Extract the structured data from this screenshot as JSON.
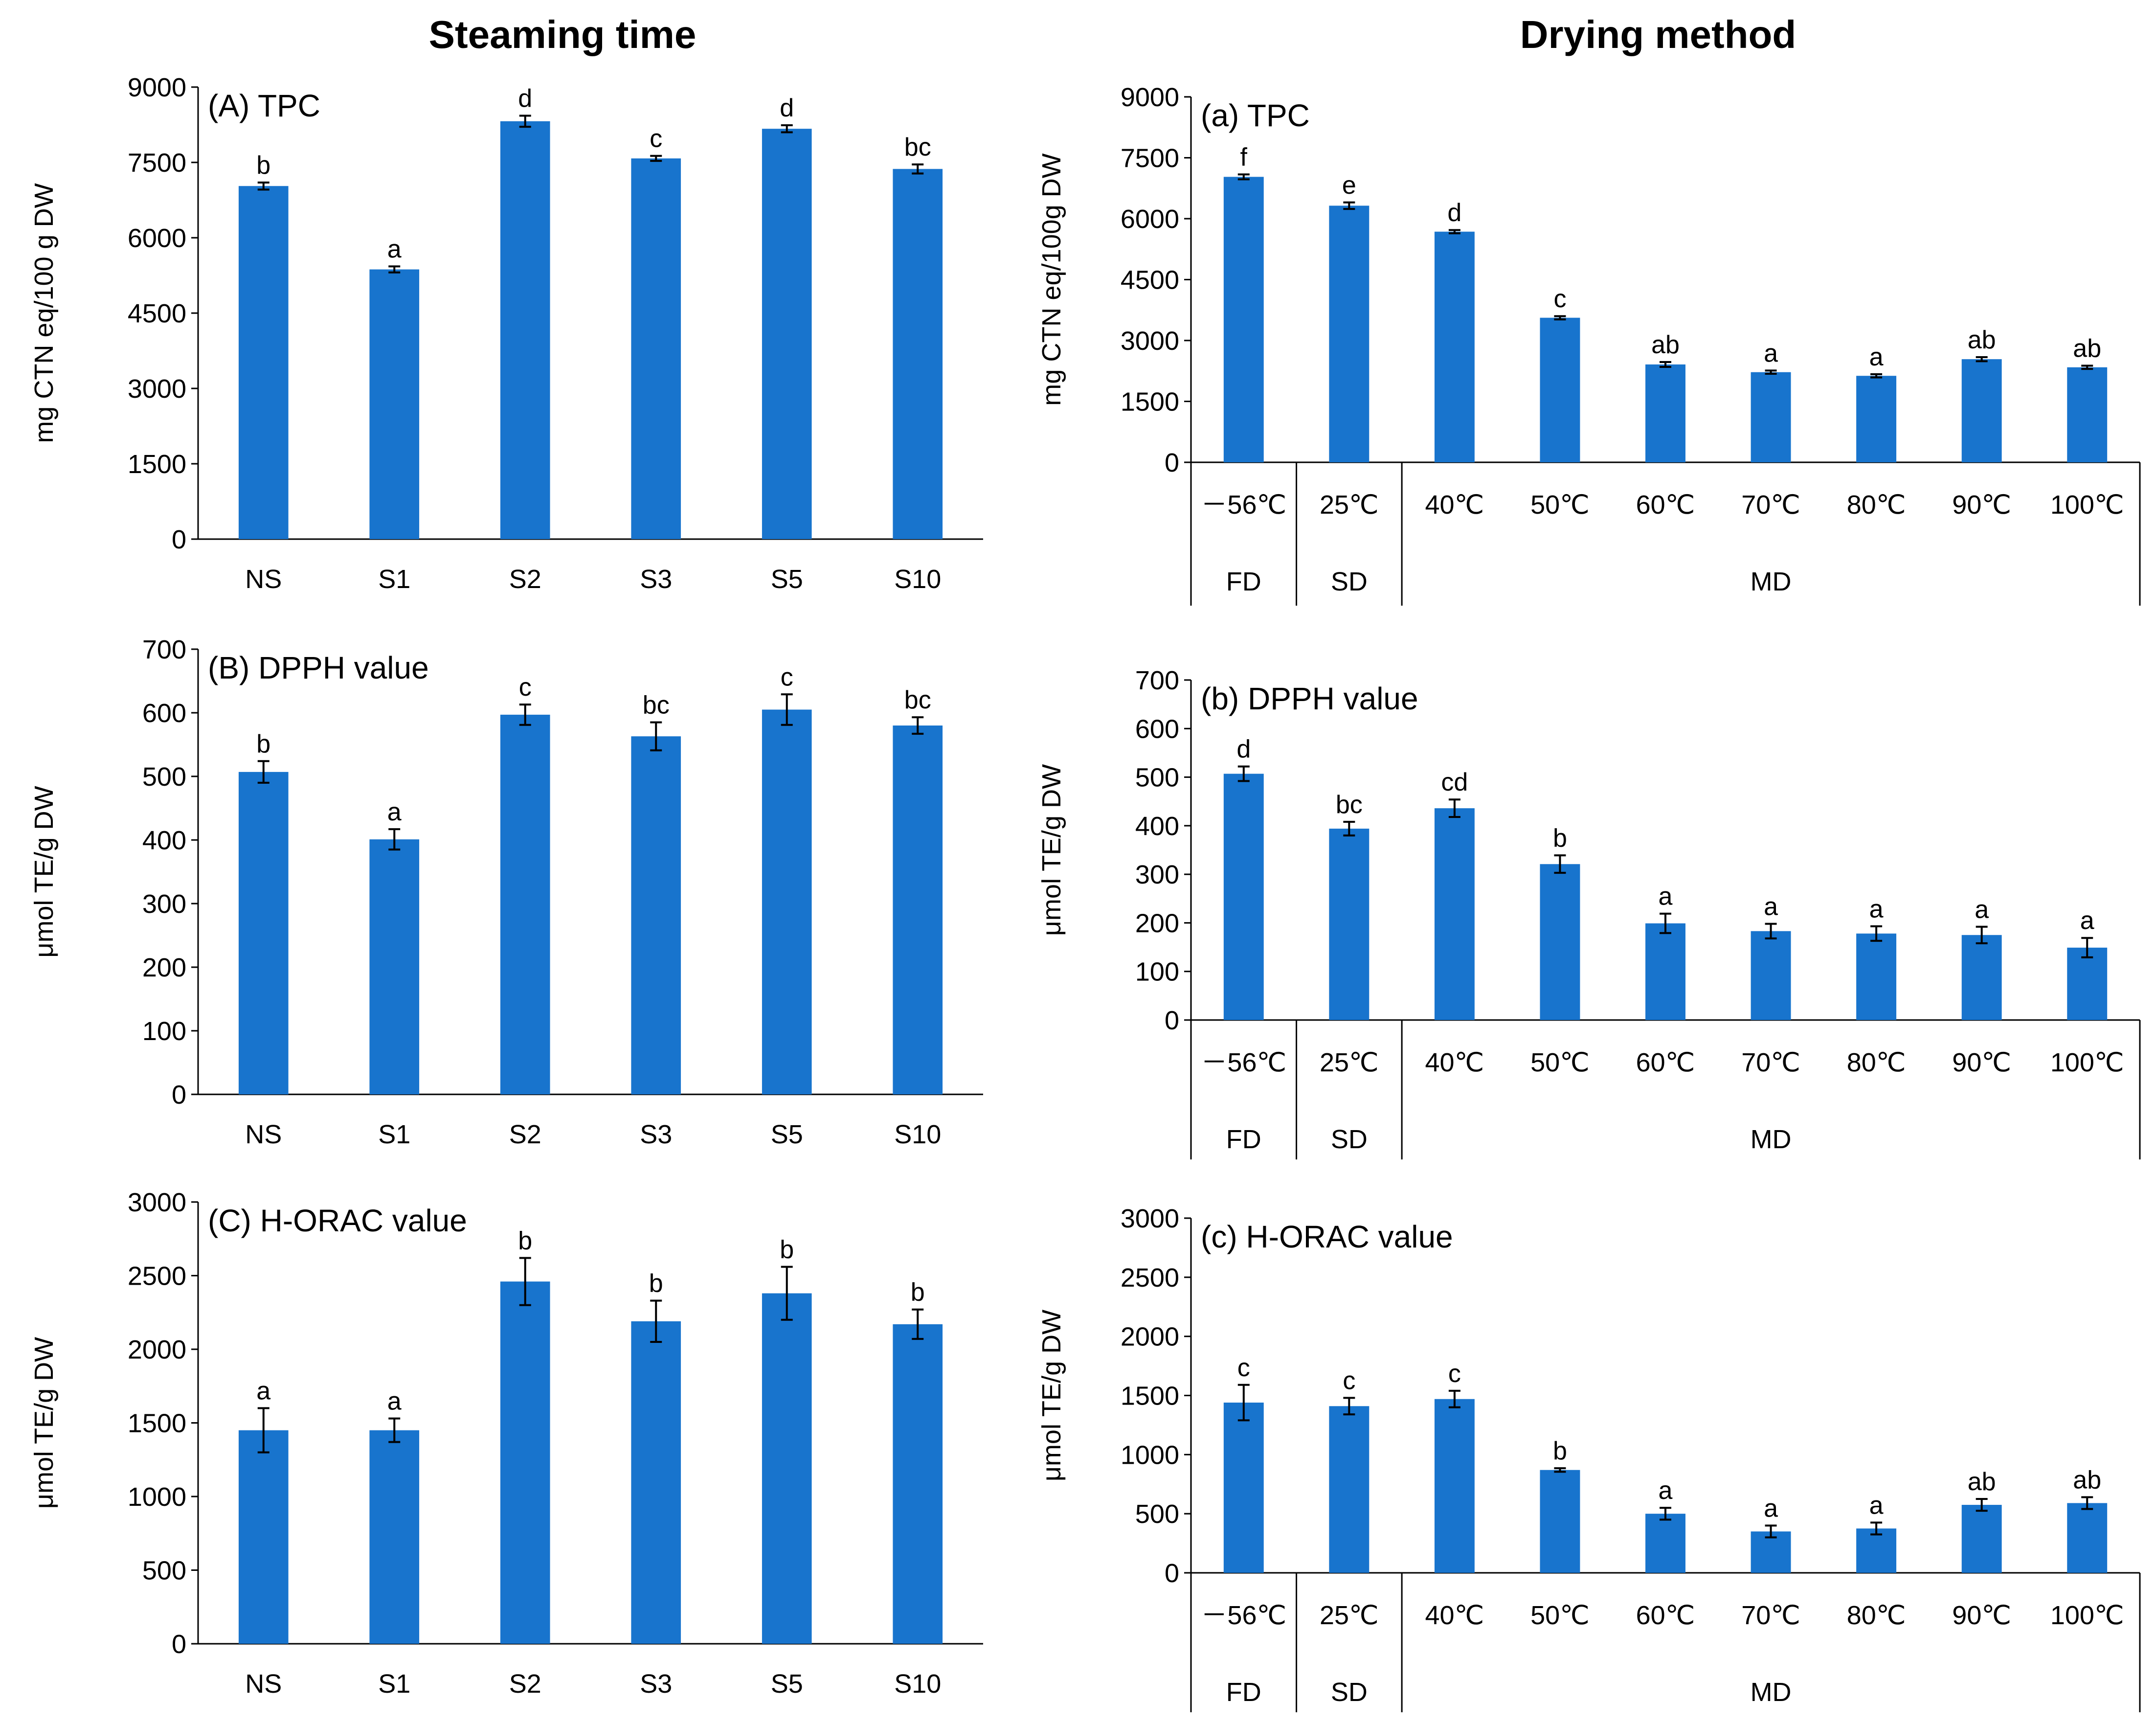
{
  "figure": {
    "left_heading": "Steaming time",
    "right_heading": "Drying method"
  },
  "colors": {
    "bar": "#1874CD",
    "axis": "#000000"
  },
  "chart_data": [
    {
      "id": "A",
      "type": "bar",
      "title": "(A) TPC",
      "ylabel": "mg CTN eq/100 g DW",
      "ylim": [
        0,
        9000
      ],
      "yticks": [
        0,
        1500,
        3000,
        4500,
        6000,
        7500,
        9000
      ],
      "categories": [
        "NS",
        "S1",
        "S2",
        "S3",
        "S5",
        "S10"
      ],
      "values": [
        7030,
        5370,
        8320,
        7580,
        8170,
        7370
      ],
      "errors": [
        70,
        60,
        110,
        50,
        70,
        90
      ],
      "letters": [
        "b",
        "a",
        "d",
        "c",
        "d",
        "bc"
      ]
    },
    {
      "id": "B",
      "type": "bar",
      "title": "(B) DPPH value",
      "ylabel": "μmol TE/g DW",
      "ylim": [
        0,
        700
      ],
      "yticks": [
        0,
        100,
        200,
        300,
        400,
        500,
        600,
        700
      ],
      "categories": [
        "NS",
        "S1",
        "S2",
        "S3",
        "S5",
        "S10"
      ],
      "values": [
        507,
        401,
        597,
        563,
        605,
        580
      ],
      "errors": [
        17,
        16,
        16,
        22,
        24,
        13
      ],
      "letters": [
        "b",
        "a",
        "c",
        "bc",
        "c",
        "bc"
      ]
    },
    {
      "id": "C",
      "type": "bar",
      "title": "(C) H-ORAC value",
      "ylabel": "μmol TE/g DW",
      "ylim": [
        0,
        3000
      ],
      "yticks": [
        0,
        500,
        1000,
        1500,
        2000,
        2500,
        3000
      ],
      "categories": [
        "NS",
        "S1",
        "S2",
        "S3",
        "S5",
        "S10"
      ],
      "values": [
        1450,
        1450,
        2460,
        2190,
        2380,
        2170
      ],
      "errors": [
        150,
        80,
        160,
        140,
        180,
        100
      ],
      "letters": [
        "a",
        "a",
        "b",
        "b",
        "b",
        "b"
      ]
    },
    {
      "id": "a",
      "type": "bar",
      "title": "(a) TPC",
      "ylabel": "mg CTN eq/100g DW",
      "ylim": [
        0,
        9000
      ],
      "yticks": [
        0,
        1500,
        3000,
        4500,
        6000,
        7500,
        9000
      ],
      "categories": [
        "－56℃",
        "25℃",
        "40℃",
        "50℃",
        "60℃",
        "70℃",
        "80℃",
        "90℃",
        "100℃"
      ],
      "groups": [
        {
          "label": "FD",
          "count": 1
        },
        {
          "label": "SD",
          "count": 1
        },
        {
          "label": "MD",
          "count": 7
        }
      ],
      "values": [
        7030,
        6320,
        5680,
        3560,
        2410,
        2220,
        2130,
        2540,
        2340
      ],
      "errors": [
        60,
        80,
        40,
        40,
        60,
        40,
        40,
        50,
        40
      ],
      "letters": [
        "f",
        "e",
        "d",
        "c",
        "ab",
        "a",
        "a",
        "ab",
        "ab"
      ]
    },
    {
      "id": "b",
      "type": "bar",
      "title": "(b) DPPH value",
      "ylabel": "μmol TE/g DW",
      "ylim": [
        0,
        700
      ],
      "yticks": [
        0,
        100,
        200,
        300,
        400,
        500,
        600,
        700
      ],
      "categories": [
        "－56℃",
        "25℃",
        "40℃",
        "50℃",
        "60℃",
        "70℃",
        "80℃",
        "90℃",
        "100℃"
      ],
      "groups": [
        {
          "label": "FD",
          "count": 1
        },
        {
          "label": "SD",
          "count": 1
        },
        {
          "label": "MD",
          "count": 7
        }
      ],
      "values": [
        507,
        394,
        436,
        321,
        199,
        183,
        178,
        175,
        149
      ],
      "errors": [
        15,
        14,
        18,
        18,
        20,
        15,
        15,
        17,
        20
      ],
      "letters": [
        "d",
        "bc",
        "cd",
        "b",
        "a",
        "a",
        "a",
        "a",
        "a"
      ]
    },
    {
      "id": "c",
      "type": "bar",
      "title": "(c) H-ORAC value",
      "ylabel": "μmol TE/g DW",
      "ylim": [
        0,
        3000
      ],
      "yticks": [
        0,
        500,
        1000,
        1500,
        2000,
        2500,
        3000
      ],
      "categories": [
        "－56℃",
        "25℃",
        "40℃",
        "50℃",
        "60℃",
        "70℃",
        "80℃",
        "90℃",
        "100℃"
      ],
      "groups": [
        {
          "label": "FD",
          "count": 1
        },
        {
          "label": "SD",
          "count": 1
        },
        {
          "label": "MD",
          "count": 7
        }
      ],
      "values": [
        1440,
        1410,
        1470,
        870,
        500,
        350,
        375,
        575,
        590
      ],
      "errors": [
        150,
        70,
        70,
        15,
        50,
        50,
        50,
        50,
        50
      ],
      "letters": [
        "c",
        "c",
        "c",
        "b",
        "a",
        "a",
        "a",
        "ab",
        "ab"
      ]
    }
  ]
}
